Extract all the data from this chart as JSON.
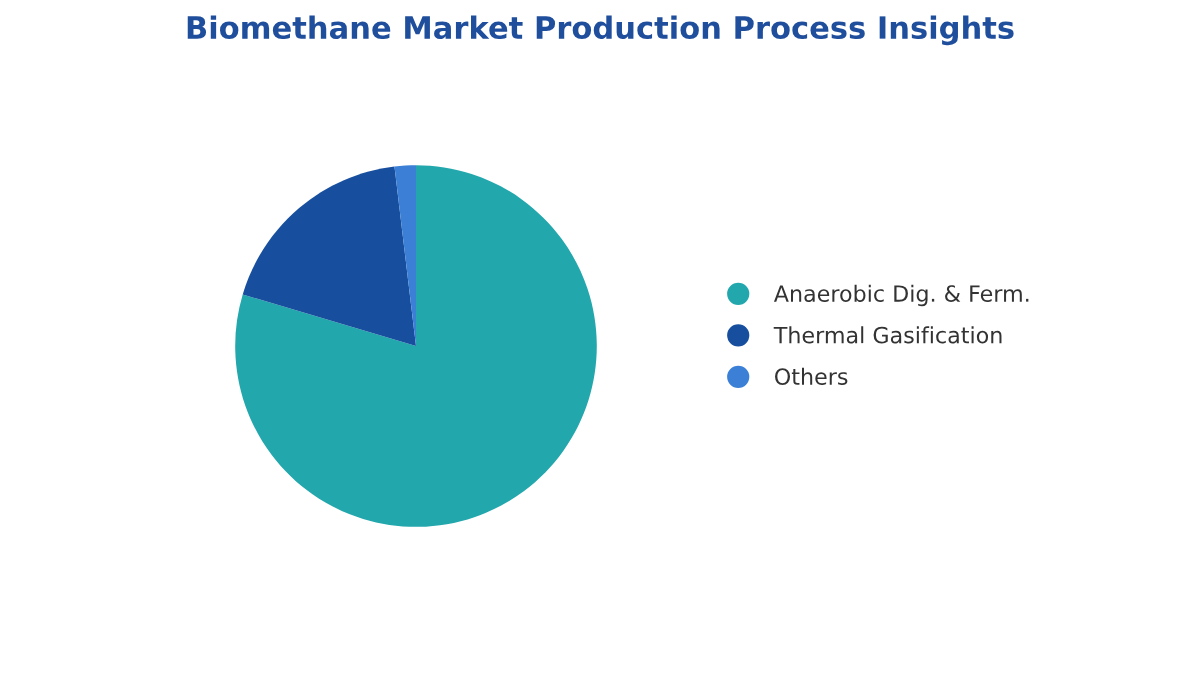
{
  "chart_data": {
    "type": "pie",
    "title": "Biomethane Market Production Process Insights",
    "categories": [
      "Anaerobic Dig. & Ferm.",
      "Thermal Gasification",
      "Others"
    ],
    "values": [
      79.6,
      18.5,
      1.9
    ],
    "colors": [
      "#22a7ad",
      "#174f9e",
      "#3b80d6"
    ],
    "legend": "right"
  }
}
